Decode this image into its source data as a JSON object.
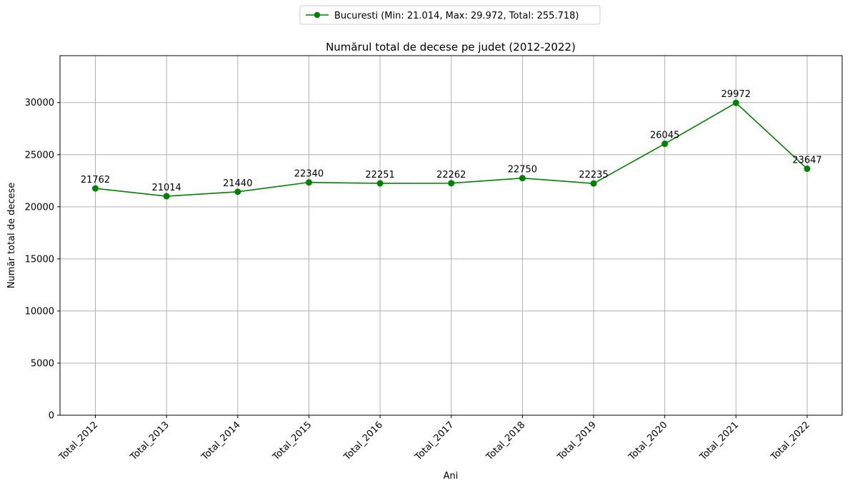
{
  "chart_data": {
    "type": "line",
    "title": "Numărul total de decese pe judet (2012-2022)",
    "xlabel": "Ani",
    "ylabel": "Număr total de decese",
    "categories": [
      "Total_2012",
      "Total_2013",
      "Total_2014",
      "Total_2015",
      "Total_2016",
      "Total_2017",
      "Total_2018",
      "Total_2019",
      "Total_2020",
      "Total_2021",
      "Total_2022"
    ],
    "series": [
      {
        "name": "Bucuresti (Min: 21.014, Max: 29.972, Total: 255.718)",
        "values": [
          21762,
          21014,
          21440,
          22340,
          22251,
          22262,
          22750,
          22235,
          26045,
          29972,
          23647
        ],
        "color": "#008000",
        "marker": "circle"
      }
    ],
    "data_labels": [
      "21762",
      "21014",
      "21440",
      "22340",
      "22251",
      "22262",
      "22750",
      "22235",
      "26045",
      "29972",
      "23647"
    ],
    "yticks": [
      0,
      5000,
      10000,
      15000,
      20000,
      25000,
      30000
    ],
    "ylim": [
      0,
      34500
    ],
    "grid": true,
    "grid_color": "#b0b0b0",
    "legend_position": "top-center"
  }
}
